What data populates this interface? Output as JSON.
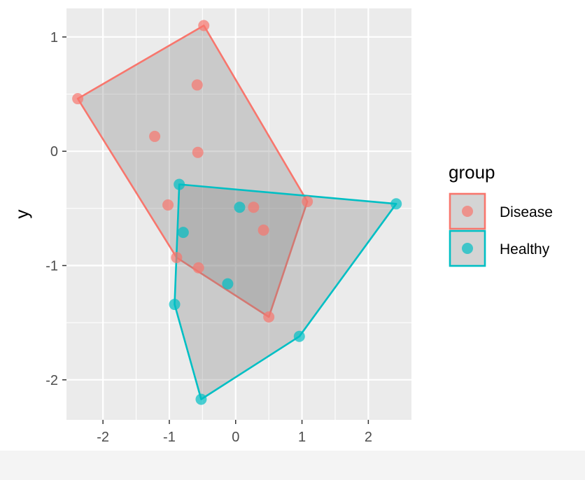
{
  "chart_data": {
    "type": "scatter",
    "title": "",
    "xlabel": "x",
    "ylabel": "y",
    "xlim": [
      -2.55,
      2.65
    ],
    "ylim": [
      -2.35,
      1.25
    ],
    "xticks": [
      -2,
      -1,
      0,
      1,
      2
    ],
    "yticks": [
      -2,
      -1,
      0,
      1
    ],
    "xtick_labels": [
      "-2",
      "-1",
      "0",
      "1",
      "2"
    ],
    "ytick_labels": [
      "-2",
      "-1",
      "0",
      "1"
    ],
    "grid": true,
    "legend": {
      "title": "group",
      "position": "right"
    },
    "hull": true,
    "series": [
      {
        "name": "Disease",
        "color": "#F8766D",
        "points": [
          [
            -0.48,
            1.1
          ],
          [
            -2.38,
            0.46
          ],
          [
            -0.58,
            0.58
          ],
          [
            -1.22,
            0.13
          ],
          [
            -0.57,
            -0.01
          ],
          [
            -1.02,
            -0.47
          ],
          [
            0.27,
            -0.49
          ],
          [
            1.08,
            -0.44
          ],
          [
            0.42,
            -0.69
          ],
          [
            -0.89,
            -0.93
          ],
          [
            -0.56,
            -1.02
          ],
          [
            0.5,
            -1.45
          ]
        ],
        "hull": [
          [
            -0.48,
            1.1
          ],
          [
            -2.38,
            0.46
          ],
          [
            -0.89,
            -0.93
          ],
          [
            0.5,
            -1.45
          ],
          [
            1.08,
            -0.44
          ]
        ]
      },
      {
        "name": "Healthy",
        "color": "#00BFC4",
        "points": [
          [
            -0.85,
            -0.29
          ],
          [
            0.06,
            -0.49
          ],
          [
            2.42,
            -0.46
          ],
          [
            -0.79,
            -0.71
          ],
          [
            -0.12,
            -1.16
          ],
          [
            -0.92,
            -1.34
          ],
          [
            0.96,
            -1.62
          ],
          [
            -0.52,
            -2.17
          ]
        ],
        "hull": [
          [
            -0.85,
            -0.29
          ],
          [
            -0.92,
            -1.34
          ],
          [
            -0.52,
            -2.17
          ],
          [
            0.96,
            -1.62
          ],
          [
            2.42,
            -0.46
          ]
        ]
      }
    ]
  }
}
